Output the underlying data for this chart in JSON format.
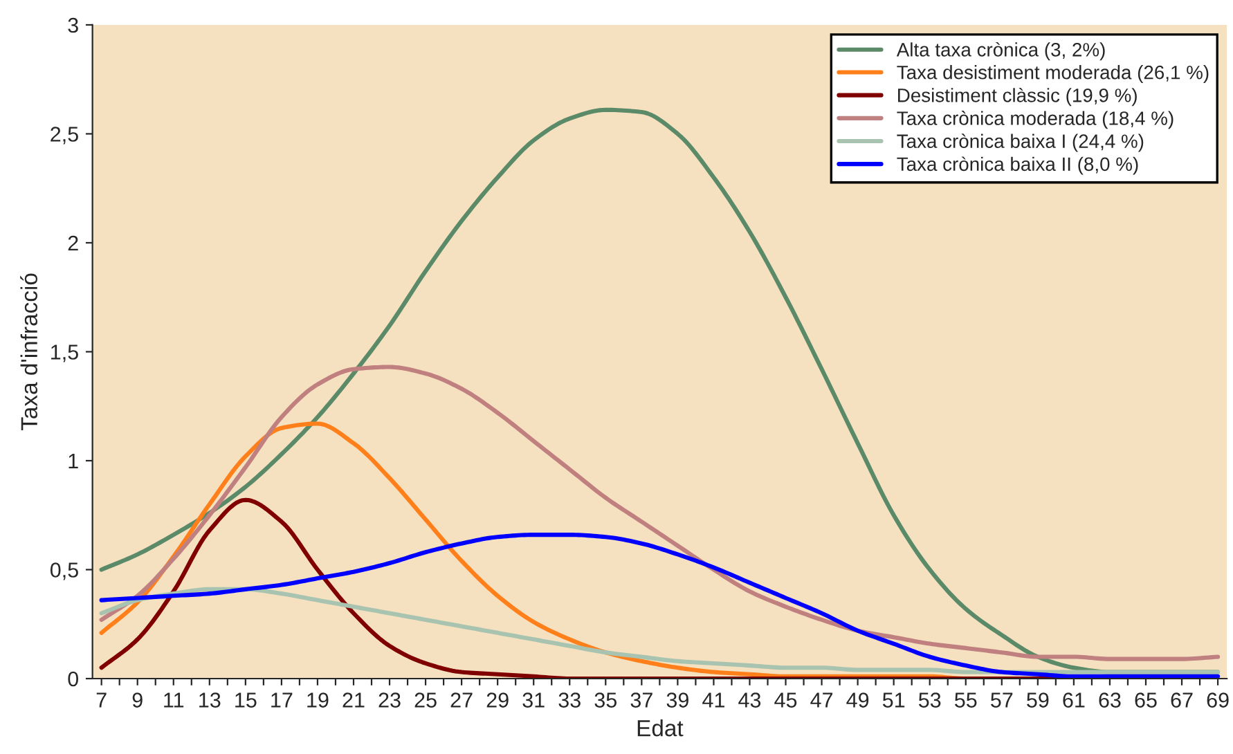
{
  "chart_data": {
    "type": "line",
    "xlabel": "Edat",
    "ylabel": "Taxa d'infracció",
    "x": [
      7,
      9,
      11,
      13,
      15,
      17,
      19,
      21,
      23,
      25,
      27,
      29,
      31,
      33,
      35,
      37,
      39,
      41,
      43,
      45,
      47,
      49,
      51,
      53,
      55,
      57,
      59,
      61,
      63,
      65,
      67,
      69
    ],
    "xlim": [
      6.5,
      69.5
    ],
    "xticks": [
      7,
      {
        "value": 8,
        "label": null
      },
      9,
      {
        "value": 10,
        "label": null
      },
      11,
      {
        "value": 12,
        "label": null
      },
      13,
      {
        "value": 14,
        "label": null
      },
      15,
      {
        "value": 16,
        "label": null
      },
      17,
      {
        "value": 18,
        "label": null
      },
      19,
      {
        "value": 20,
        "label": null
      },
      21,
      {
        "value": 22,
        "label": null
      },
      23,
      {
        "value": 24,
        "label": null
      },
      25,
      {
        "value": 26,
        "label": null
      },
      27,
      {
        "value": 28,
        "label": null
      },
      29,
      {
        "value": 30,
        "label": null
      },
      31,
      {
        "value": 32,
        "label": null
      },
      33,
      {
        "value": 34,
        "label": null
      },
      35,
      {
        "value": 36,
        "label": null
      },
      37,
      {
        "value": 38,
        "label": null
      },
      39,
      {
        "value": 40,
        "label": null
      },
      41,
      {
        "value": 42,
        "label": null
      },
      43,
      {
        "value": 44,
        "label": null
      },
      45,
      {
        "value": 46,
        "label": null
      },
      47,
      {
        "value": 48,
        "label": null
      },
      49,
      {
        "value": 50,
        "label": null
      },
      51,
      {
        "value": 52,
        "label": null
      },
      53,
      {
        "value": 54,
        "label": null
      },
      55,
      {
        "value": 56,
        "label": null
      },
      57,
      {
        "value": 58,
        "label": null
      },
      59,
      {
        "value": 60,
        "label": null
      },
      61,
      {
        "value": 62,
        "label": null
      },
      63,
      {
        "value": 64,
        "label": null
      },
      65,
      {
        "value": 66,
        "label": null
      },
      67,
      {
        "value": 68,
        "label": null
      },
      69
    ],
    "ylim": [
      0,
      3
    ],
    "yticks": [
      0,
      {
        "value": 0.5,
        "label": "0,5"
      },
      1,
      {
        "value": 1.5,
        "label": "1,5"
      },
      2,
      {
        "value": 2.5,
        "label": "2,5"
      },
      3
    ],
    "grid": false,
    "legend": "top right",
    "marker": "none",
    "line_style": "solid",
    "series": [
      {
        "name": "Alta taxa crònica (3, 2%)",
        "color": "#5b8a68",
        "values": [
          0.5,
          0.57,
          0.66,
          0.76,
          0.88,
          1.03,
          1.2,
          1.4,
          1.62,
          1.87,
          2.1,
          2.3,
          2.47,
          2.57,
          2.61,
          2.6,
          2.5,
          2.3,
          2.05,
          1.75,
          1.42,
          1.08,
          0.75,
          0.5,
          0.32,
          0.2,
          0.1,
          0.05,
          0.03,
          0.03,
          0.03,
          0.03
        ]
      },
      {
        "name": "Taxa desistiment moderada (26,1 %)",
        "color": "#ff7f1a",
        "values": [
          0.21,
          0.35,
          0.56,
          0.8,
          1.02,
          1.15,
          1.17,
          1.08,
          0.92,
          0.73,
          0.54,
          0.38,
          0.26,
          0.18,
          0.12,
          0.08,
          0.05,
          0.03,
          0.02,
          0.01,
          0.01,
          0.01,
          0.01,
          0.01,
          0.0,
          0.0,
          null,
          null,
          null,
          null,
          null,
          null
        ]
      },
      {
        "name": "Desistiment clàssic (19,9 %)",
        "color": "#800000",
        "values": [
          0.05,
          0.18,
          0.4,
          0.68,
          0.82,
          0.72,
          0.5,
          0.3,
          0.15,
          0.07,
          0.03,
          0.02,
          0.01,
          0.0,
          0.0,
          0.0,
          0.0,
          0.0,
          0.0,
          0.0,
          0.0,
          0.0,
          0.0,
          0.0,
          0.0,
          0.0,
          0.0,
          0.0,
          0.0,
          null,
          null,
          null
        ]
      },
      {
        "name": "Taxa crònica moderada (18,4 %)",
        "color": "#c08080",
        "values": [
          0.27,
          0.38,
          0.55,
          0.75,
          0.97,
          1.2,
          1.35,
          1.42,
          1.43,
          1.4,
          1.33,
          1.22,
          1.09,
          0.96,
          0.83,
          0.72,
          0.61,
          0.5,
          0.4,
          0.33,
          0.27,
          0.22,
          0.19,
          0.16,
          0.14,
          0.12,
          0.1,
          0.1,
          0.09,
          0.09,
          0.09,
          0.1
        ]
      },
      {
        "name": "Taxa crònica baixa I (24,4 %)",
        "color": "#a8c4b0",
        "values": [
          0.3,
          0.36,
          0.39,
          0.41,
          0.41,
          0.39,
          0.36,
          0.33,
          0.3,
          0.27,
          0.24,
          0.21,
          0.18,
          0.15,
          0.12,
          0.1,
          0.08,
          0.07,
          0.06,
          0.05,
          0.05,
          0.04,
          0.04,
          0.04,
          0.03,
          0.03,
          0.03,
          0.03,
          0.03,
          0.03,
          0.03,
          0.03
        ]
      },
      {
        "name": "Taxa crònica baixa II (8,0 %)",
        "color": "#0000ff",
        "values": [
          0.36,
          0.37,
          0.38,
          0.39,
          0.41,
          0.43,
          0.46,
          0.49,
          0.53,
          0.58,
          0.62,
          0.65,
          0.66,
          0.66,
          0.65,
          0.62,
          0.57,
          0.51,
          0.44,
          0.37,
          0.3,
          0.22,
          0.16,
          0.1,
          0.06,
          0.03,
          0.02,
          0.01,
          0.01,
          0.01,
          0.01,
          0.01
        ]
      }
    ]
  }
}
